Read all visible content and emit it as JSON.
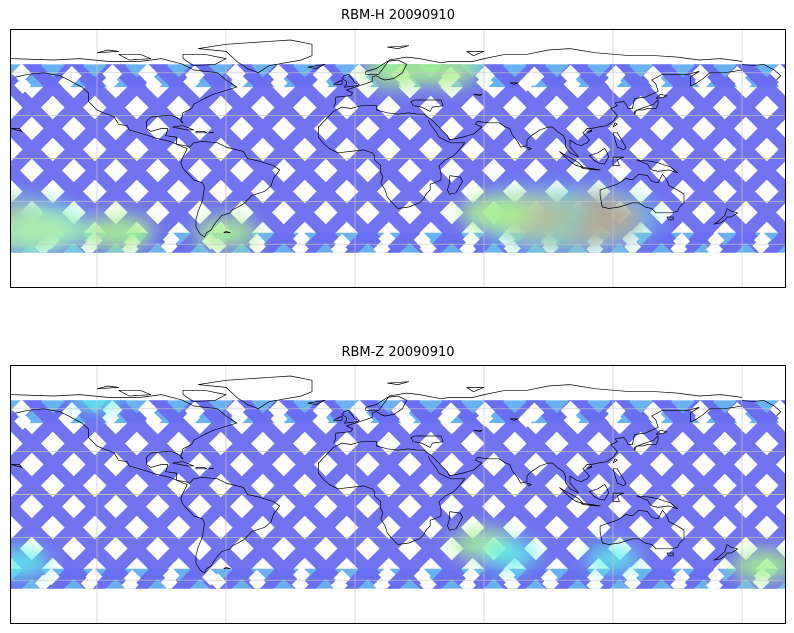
{
  "panels": [
    {
      "id": "top",
      "title": "RBM-H 20090910",
      "hotspots": [
        {
          "lon": -160,
          "lat": -48,
          "value": 0.95
        },
        {
          "lon": -145,
          "lat": -50,
          "value": 0.65
        },
        {
          "lon": -110,
          "lat": -52,
          "value": 0.55
        },
        {
          "lon": -60,
          "lat": -52,
          "value": 0.45
        },
        {
          "lon": 20,
          "lat": 62,
          "value": 0.55
        },
        {
          "lon": 42,
          "lat": 62,
          "value": 0.5
        },
        {
          "lon": 95,
          "lat": -45,
          "value": 0.95
        },
        {
          "lon": 110,
          "lat": -42,
          "value": 0.92
        },
        {
          "lon": 80,
          "lat": -40,
          "value": 0.75
        },
        {
          "lon": 65,
          "lat": -38,
          "value": 0.55
        }
      ]
    },
    {
      "id": "bottom",
      "title": "RBM-Z 20090910",
      "hotspots": [
        {
          "lon": -170,
          "lat": -50,
          "value": 0.45
        },
        {
          "lon": -155,
          "lat": -48,
          "value": 0.35
        },
        {
          "lon": 60,
          "lat": -35,
          "value": 0.45
        },
        {
          "lon": 72,
          "lat": -42,
          "value": 0.35
        },
        {
          "lon": 120,
          "lat": -45,
          "value": 0.3
        },
        {
          "lon": -120,
          "lat": 68,
          "value": 0.3
        }
      ]
    }
  ],
  "colors": {
    "track_base": "#6a6cf0",
    "track_light": "#5aa8f0",
    "cyan": "#5ef0e8",
    "green": "#a8f090",
    "yellow": "#f0f078",
    "orange": "#ff9a5a",
    "red": "#ff6a50",
    "coast": "#000000",
    "grid": "#c8c8c8"
  }
}
